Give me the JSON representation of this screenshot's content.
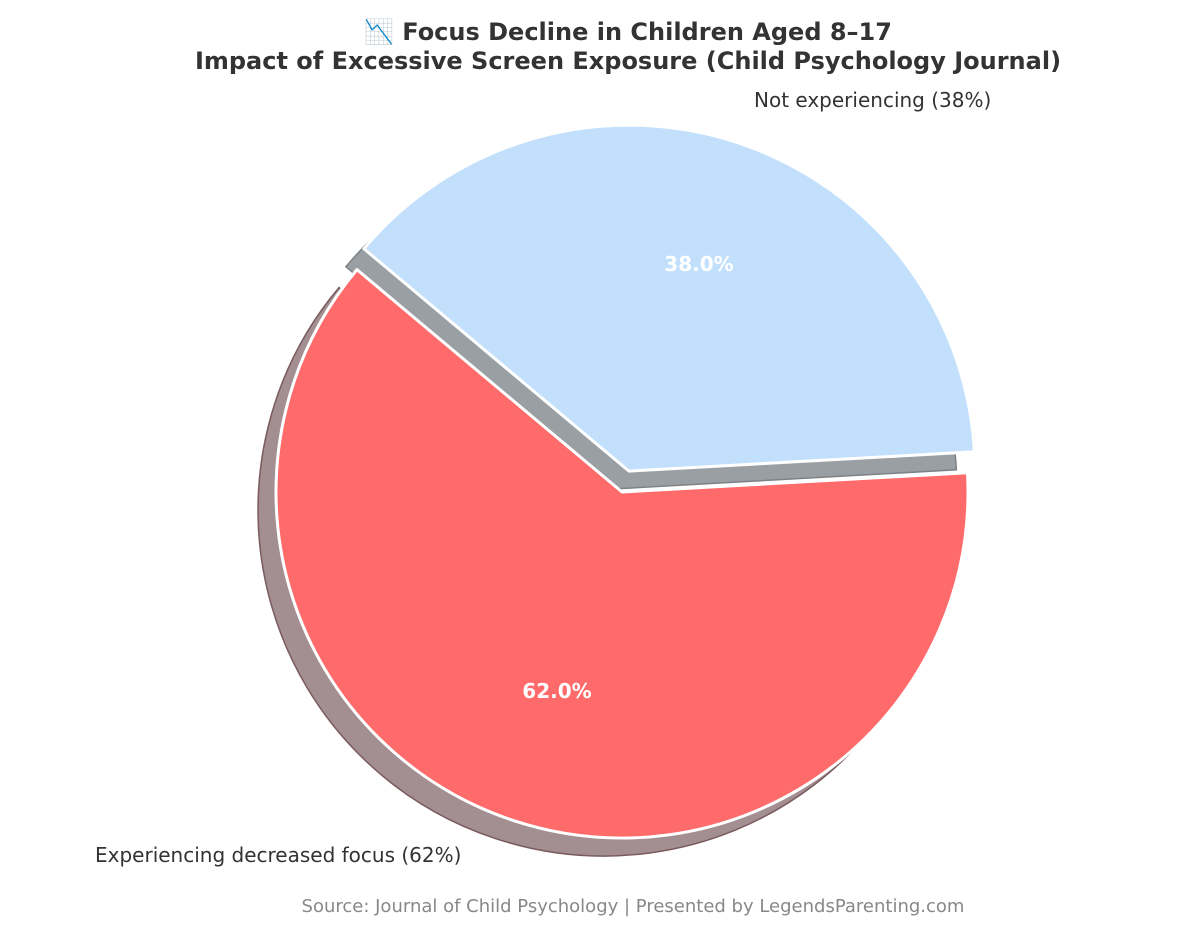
{
  "chart_data": {
    "type": "pie",
    "title": "📉 Focus Decline in Children Aged 8–17",
    "subtitle": "Impact of Excessive Screen Exposure (Child Psychology Journal)",
    "categories": [
      "Experiencing decreased focus (62%)",
      "Not experiencing (38%)"
    ],
    "values": [
      62,
      38
    ],
    "percent_labels": [
      "62.0%",
      "38.0%"
    ],
    "colors": [
      "#ff6b6b",
      "#c2e0fc"
    ],
    "exploded": [
      false,
      true
    ],
    "shadow": true,
    "source": "Source: Journal of Child Psychology | Presented by LegendsParenting.com"
  }
}
